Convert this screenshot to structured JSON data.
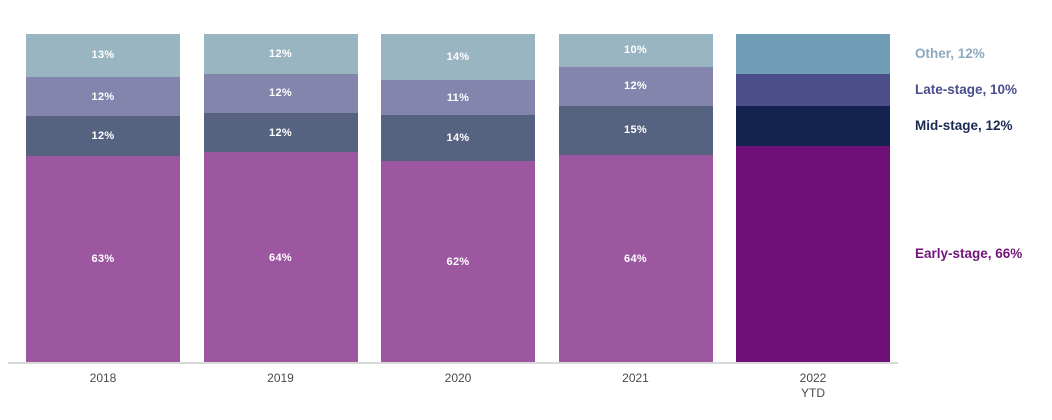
{
  "chart_data": {
    "type": "bar",
    "stacked": true,
    "orientation": "vertical",
    "unit": "percent",
    "title": "",
    "xlabel": "",
    "ylabel": "",
    "ylim": [
      0,
      100
    ],
    "grid": false,
    "legend_position": "right",
    "categories": [
      "2018",
      "2019",
      "2020",
      "2021",
      "2022 YTD"
    ],
    "category_lines": [
      [
        "2018"
      ],
      [
        "2019"
      ],
      [
        "2020"
      ],
      [
        "2021"
      ],
      [
        "2022",
        "YTD"
      ]
    ],
    "highlight_category": "2022 YTD",
    "highlight_category_index": 4,
    "series": [
      {
        "name": "Early-stage",
        "values": [
          63,
          64,
          62,
          64,
          66
        ],
        "bar_labels": [
          "63%",
          "64%",
          "62%",
          "64%",
          ""
        ],
        "color": "#9c57a0",
        "highlight_color": "#6e1078"
      },
      {
        "name": "Mid-stage",
        "values": [
          12,
          12,
          14,
          15,
          12
        ],
        "bar_labels": [
          "12%",
          "12%",
          "14%",
          "15%",
          ""
        ],
        "color": "#556280",
        "highlight_color": "#13224e"
      },
      {
        "name": "Late-stage",
        "values": [
          12,
          12,
          11,
          12,
          10
        ],
        "bar_labels": [
          "12%",
          "12%",
          "11%",
          "12%",
          ""
        ],
        "color": "#8385ad",
        "highlight_color": "#4b4e88"
      },
      {
        "name": "Other",
        "values": [
          13,
          12,
          14,
          10,
          12
        ],
        "bar_labels": [
          "13%",
          "12%",
          "14%",
          "10%",
          ""
        ],
        "color": "#9ab5c2",
        "highlight_color": "#6f9db5"
      }
    ],
    "legend": [
      {
        "series": "Other",
        "label": "Other, 12%",
        "text_color": "#8ba9bd"
      },
      {
        "series": "Late-stage",
        "label": "Late-stage, 10%",
        "text_color": "#4b4e8c"
      },
      {
        "series": "Mid-stage",
        "label": "Mid-stage, 12%",
        "text_color": "#1b2a52"
      },
      {
        "series": "Early-stage",
        "label": "Early-stage, 66%",
        "text_color": "#73157e"
      }
    ],
    "axis": {
      "baseline_color": "#d9d9d9",
      "tick_label_color": "#4a4a4a"
    }
  }
}
